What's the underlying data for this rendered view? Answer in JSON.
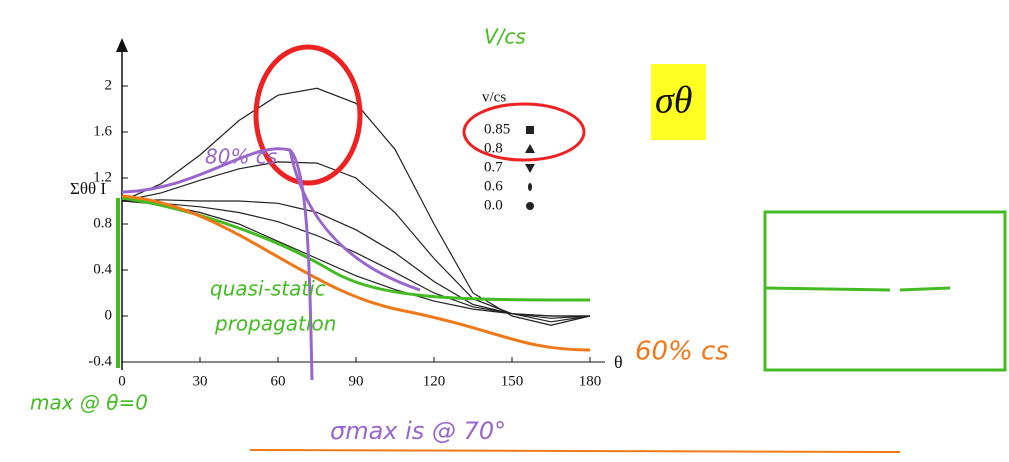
{
  "chart_data": {
    "type": "line",
    "y_label": "Σθθ I",
    "x_label": "θ",
    "legend_title": "v/cs",
    "x": [
      0,
      15,
      30,
      45,
      60,
      75,
      90,
      105,
      120,
      135,
      150,
      165,
      180
    ],
    "series": [
      {
        "name": "0.85",
        "color": "#222222",
        "values": [
          1.0,
          1.15,
          1.4,
          1.7,
          1.92,
          1.98,
          1.85,
          1.45,
          0.8,
          0.2,
          0.0,
          -0.08,
          0.0
        ]
      },
      {
        "name": "0.8",
        "color": "#222222",
        "values": [
          1.0,
          1.07,
          1.18,
          1.28,
          1.34,
          1.33,
          1.2,
          0.9,
          0.5,
          0.15,
          0.02,
          -0.05,
          0.0
        ]
      },
      {
        "name": "0.7",
        "color": "#222222",
        "values": [
          1.0,
          1.01,
          1.0,
          1.0,
          0.98,
          0.9,
          0.75,
          0.55,
          0.3,
          0.1,
          0.02,
          -0.02,
          0.0
        ]
      },
      {
        "name": "0.6",
        "color": "#222222",
        "values": [
          1.0,
          0.98,
          0.95,
          0.9,
          0.82,
          0.7,
          0.55,
          0.38,
          0.2,
          0.08,
          0.02,
          0.0,
          0.0
        ]
      },
      {
        "name": "0.0",
        "color": "#222222",
        "values": [
          1.0,
          0.97,
          0.9,
          0.8,
          0.65,
          0.5,
          0.35,
          0.23,
          0.13,
          0.06,
          0.02,
          0.0,
          0.0
        ]
      }
    ],
    "xlim": [
      0,
      180
    ],
    "xticks": [
      0,
      30,
      60,
      90,
      120,
      150,
      180
    ],
    "ylim": [
      -0.4,
      2.2
    ],
    "yticks": [
      -0.4,
      0,
      0.4,
      0.8,
      1.2,
      1.6,
      2
    ],
    "slide_symbol": "σθ",
    "annotations": [
      "V/cs",
      "80% cs",
      "quasi-static",
      "propagation",
      "60% cs",
      "max @ θ=0",
      "σmax is @ 70°"
    ]
  }
}
